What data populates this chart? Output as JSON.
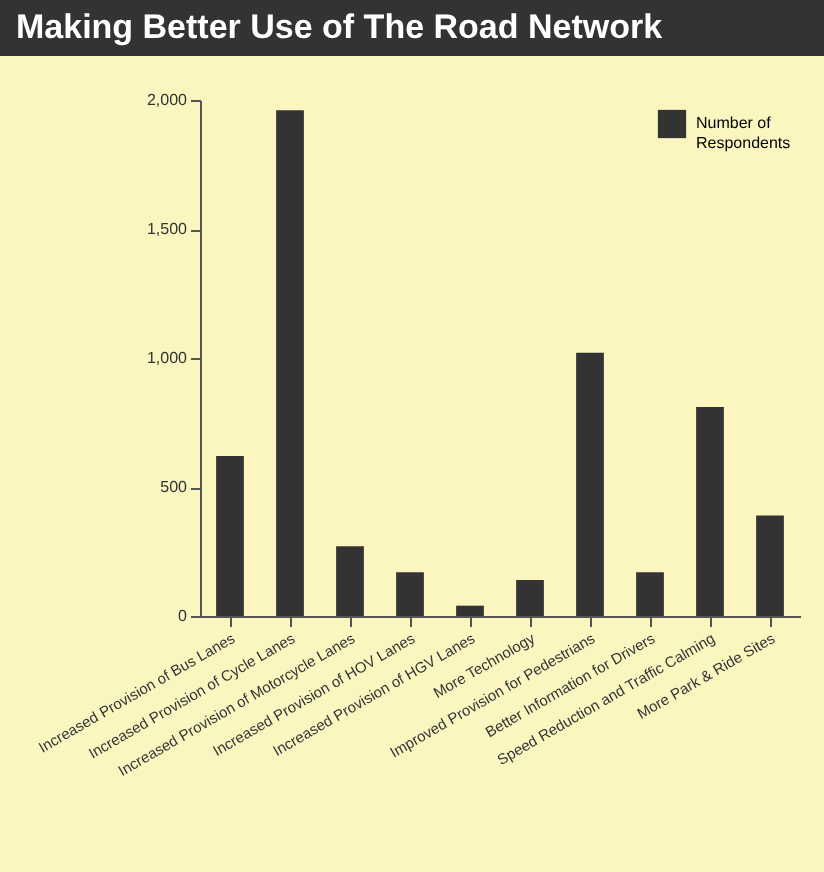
{
  "chart_data": {
    "type": "bar",
    "title": "Making Better Use of The Road Network",
    "categories": [
      "Increased Provision of Bus Lanes",
      "Increased Provision of Cycle Lanes",
      "Increased Provision of Motorcycle Lanes",
      "Increased Provision of HOV Lanes",
      "Increased Provision of HGV Lanes",
      "More Technology",
      "Improved Provision for Pedestrians",
      "Better Information for Drivers",
      "Speed Reduction and Traffic Calming",
      "More Park & Ride Sites"
    ],
    "series": [
      {
        "name": "Number of Respondents",
        "color": "#333333",
        "values": [
          620,
          1960,
          270,
          170,
          40,
          140,
          1020,
          170,
          810,
          390
        ]
      }
    ],
    "ylim": [
      0,
      2000
    ],
    "yticks": [
      0,
      {
        "value": 500,
        "label": "500"
      },
      {
        "value": 1000,
        "label": "1,000"
      },
      {
        "value": 1500,
        "label": "1,500"
      },
      {
        "value": 2000,
        "label": "2,000"
      }
    ],
    "grid": false,
    "legend": "top right"
  }
}
